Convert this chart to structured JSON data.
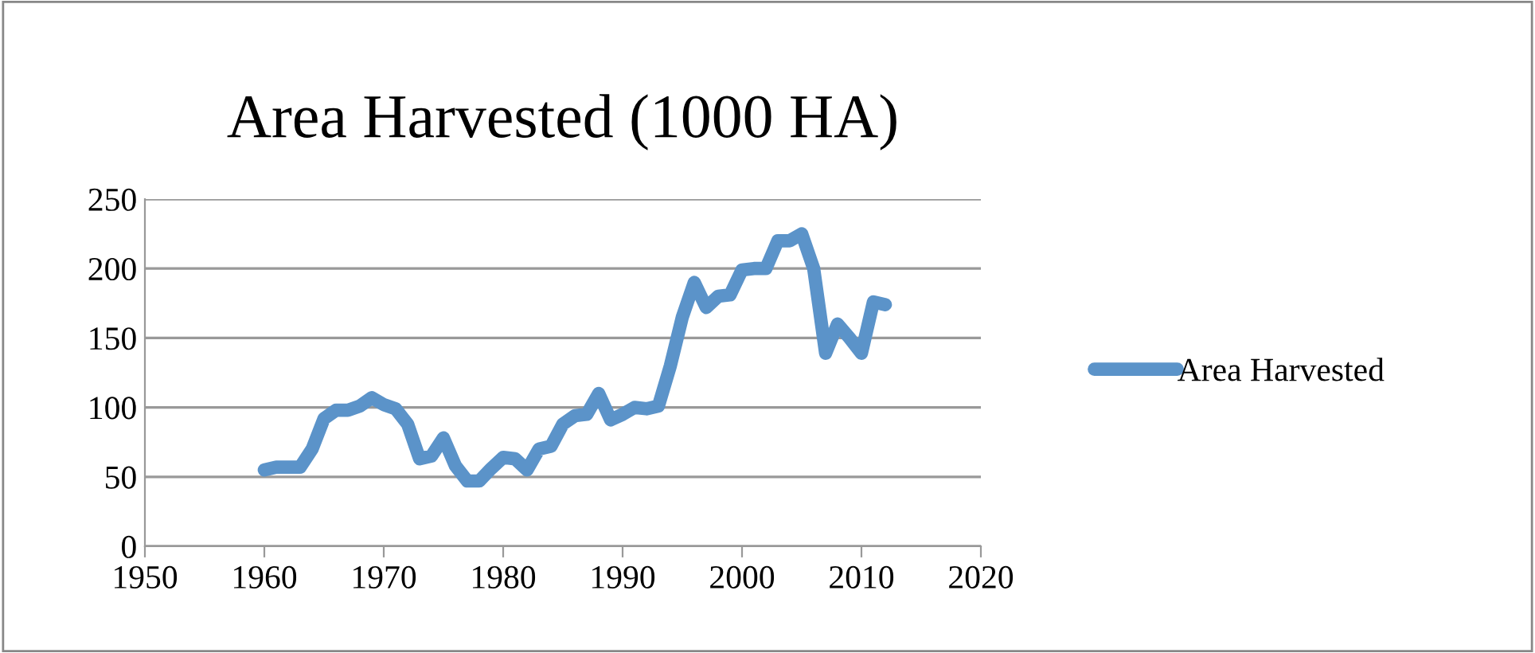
{
  "chart_data": {
    "type": "line",
    "title": "Area Harvested (1000 HA)",
    "x": [
      1960,
      1961,
      1962,
      1963,
      1964,
      1965,
      1966,
      1967,
      1968,
      1969,
      1970,
      1971,
      1972,
      1973,
      1974,
      1975,
      1976,
      1977,
      1978,
      1979,
      1980,
      1981,
      1982,
      1983,
      1984,
      1985,
      1986,
      1987,
      1988,
      1989,
      1990,
      1991,
      1992,
      1993,
      1994,
      1995,
      1996,
      1997,
      1998,
      1999,
      2000,
      2001,
      2002,
      2003,
      2004,
      2005,
      2006,
      2007,
      2008,
      2009,
      2010,
      2011,
      2012
    ],
    "series": [
      {
        "name": "Area Harvested",
        "color": "#5b93c9",
        "values": [
          55,
          57,
          57,
          57,
          70,
          92,
          98,
          98,
          101,
          107,
          102,
          99,
          88,
          63,
          65,
          78,
          58,
          47,
          47,
          56,
          64,
          63,
          55,
          70,
          72,
          88,
          94,
          95,
          110,
          91,
          95,
          100,
          99,
          101,
          130,
          165,
          190,
          172,
          180,
          181,
          199,
          200,
          200,
          220,
          220,
          225,
          200,
          139,
          160,
          150,
          139,
          176,
          174
        ]
      }
    ],
    "xlim": [
      1950,
      2020
    ],
    "xticks": [
      1950,
      1960,
      1970,
      1980,
      1990,
      2000,
      2010,
      2020
    ],
    "ylim": [
      0,
      250
    ],
    "yticks": [
      0,
      50,
      100,
      150,
      200,
      250
    ],
    "grid": "y",
    "legend": "right",
    "marker": "none",
    "line_style": "solid"
  }
}
